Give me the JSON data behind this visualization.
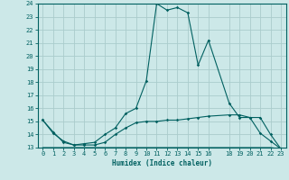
{
  "xlabel": "Humidex (Indice chaleur)",
  "bg_color": "#cce8e8",
  "grid_color": "#aacccc",
  "line_color": "#006060",
  "xlim": [
    -0.5,
    23.5
  ],
  "ylim": [
    13,
    24
  ],
  "xticks": [
    0,
    1,
    2,
    3,
    4,
    5,
    6,
    7,
    8,
    9,
    10,
    11,
    12,
    13,
    14,
    15,
    16,
    18,
    19,
    20,
    21,
    22,
    23
  ],
  "yticks": [
    13,
    14,
    15,
    16,
    17,
    18,
    19,
    20,
    21,
    22,
    23,
    24
  ],
  "series1_x": [
    0,
    1,
    2,
    3,
    4,
    5,
    6,
    7,
    8,
    9,
    10,
    11,
    12,
    13,
    14,
    15,
    16,
    18,
    19,
    20,
    21,
    22,
    23
  ],
  "series1_y": [
    15.1,
    14.1,
    13.5,
    13.2,
    13.2,
    13.2,
    13.4,
    14.0,
    14.5,
    14.9,
    15.0,
    15.0,
    15.1,
    15.1,
    15.2,
    15.3,
    15.4,
    15.5,
    15.5,
    15.3,
    14.1,
    13.5,
    12.9
  ],
  "series2_x": [
    0,
    1,
    2,
    3,
    4,
    5,
    6,
    7,
    8,
    9,
    10,
    11,
    12,
    13,
    14,
    15,
    16,
    17,
    18,
    19,
    20,
    21,
    22,
    23
  ],
  "series2_y": [
    13.0,
    13.0,
    13.0,
    13.0,
    13.0,
    13.0,
    13.0,
    13.0,
    13.0,
    13.0,
    13.0,
    13.0,
    13.0,
    13.0,
    13.0,
    13.0,
    13.0,
    13.0,
    13.0,
    13.0,
    13.0,
    13.0,
    13.0,
    12.9
  ],
  "series3_x": [
    0,
    1,
    2,
    3,
    4,
    5,
    6,
    7,
    8,
    9,
    10,
    11,
    12,
    13,
    14,
    15,
    16,
    18,
    19,
    20,
    21,
    22,
    23
  ],
  "series3_y": [
    15.1,
    14.2,
    13.4,
    13.2,
    13.3,
    13.4,
    14.0,
    14.5,
    15.6,
    16.0,
    18.1,
    24.0,
    23.5,
    23.7,
    23.3,
    19.3,
    21.2,
    16.4,
    15.3,
    15.3,
    15.3,
    14.0,
    12.9
  ]
}
